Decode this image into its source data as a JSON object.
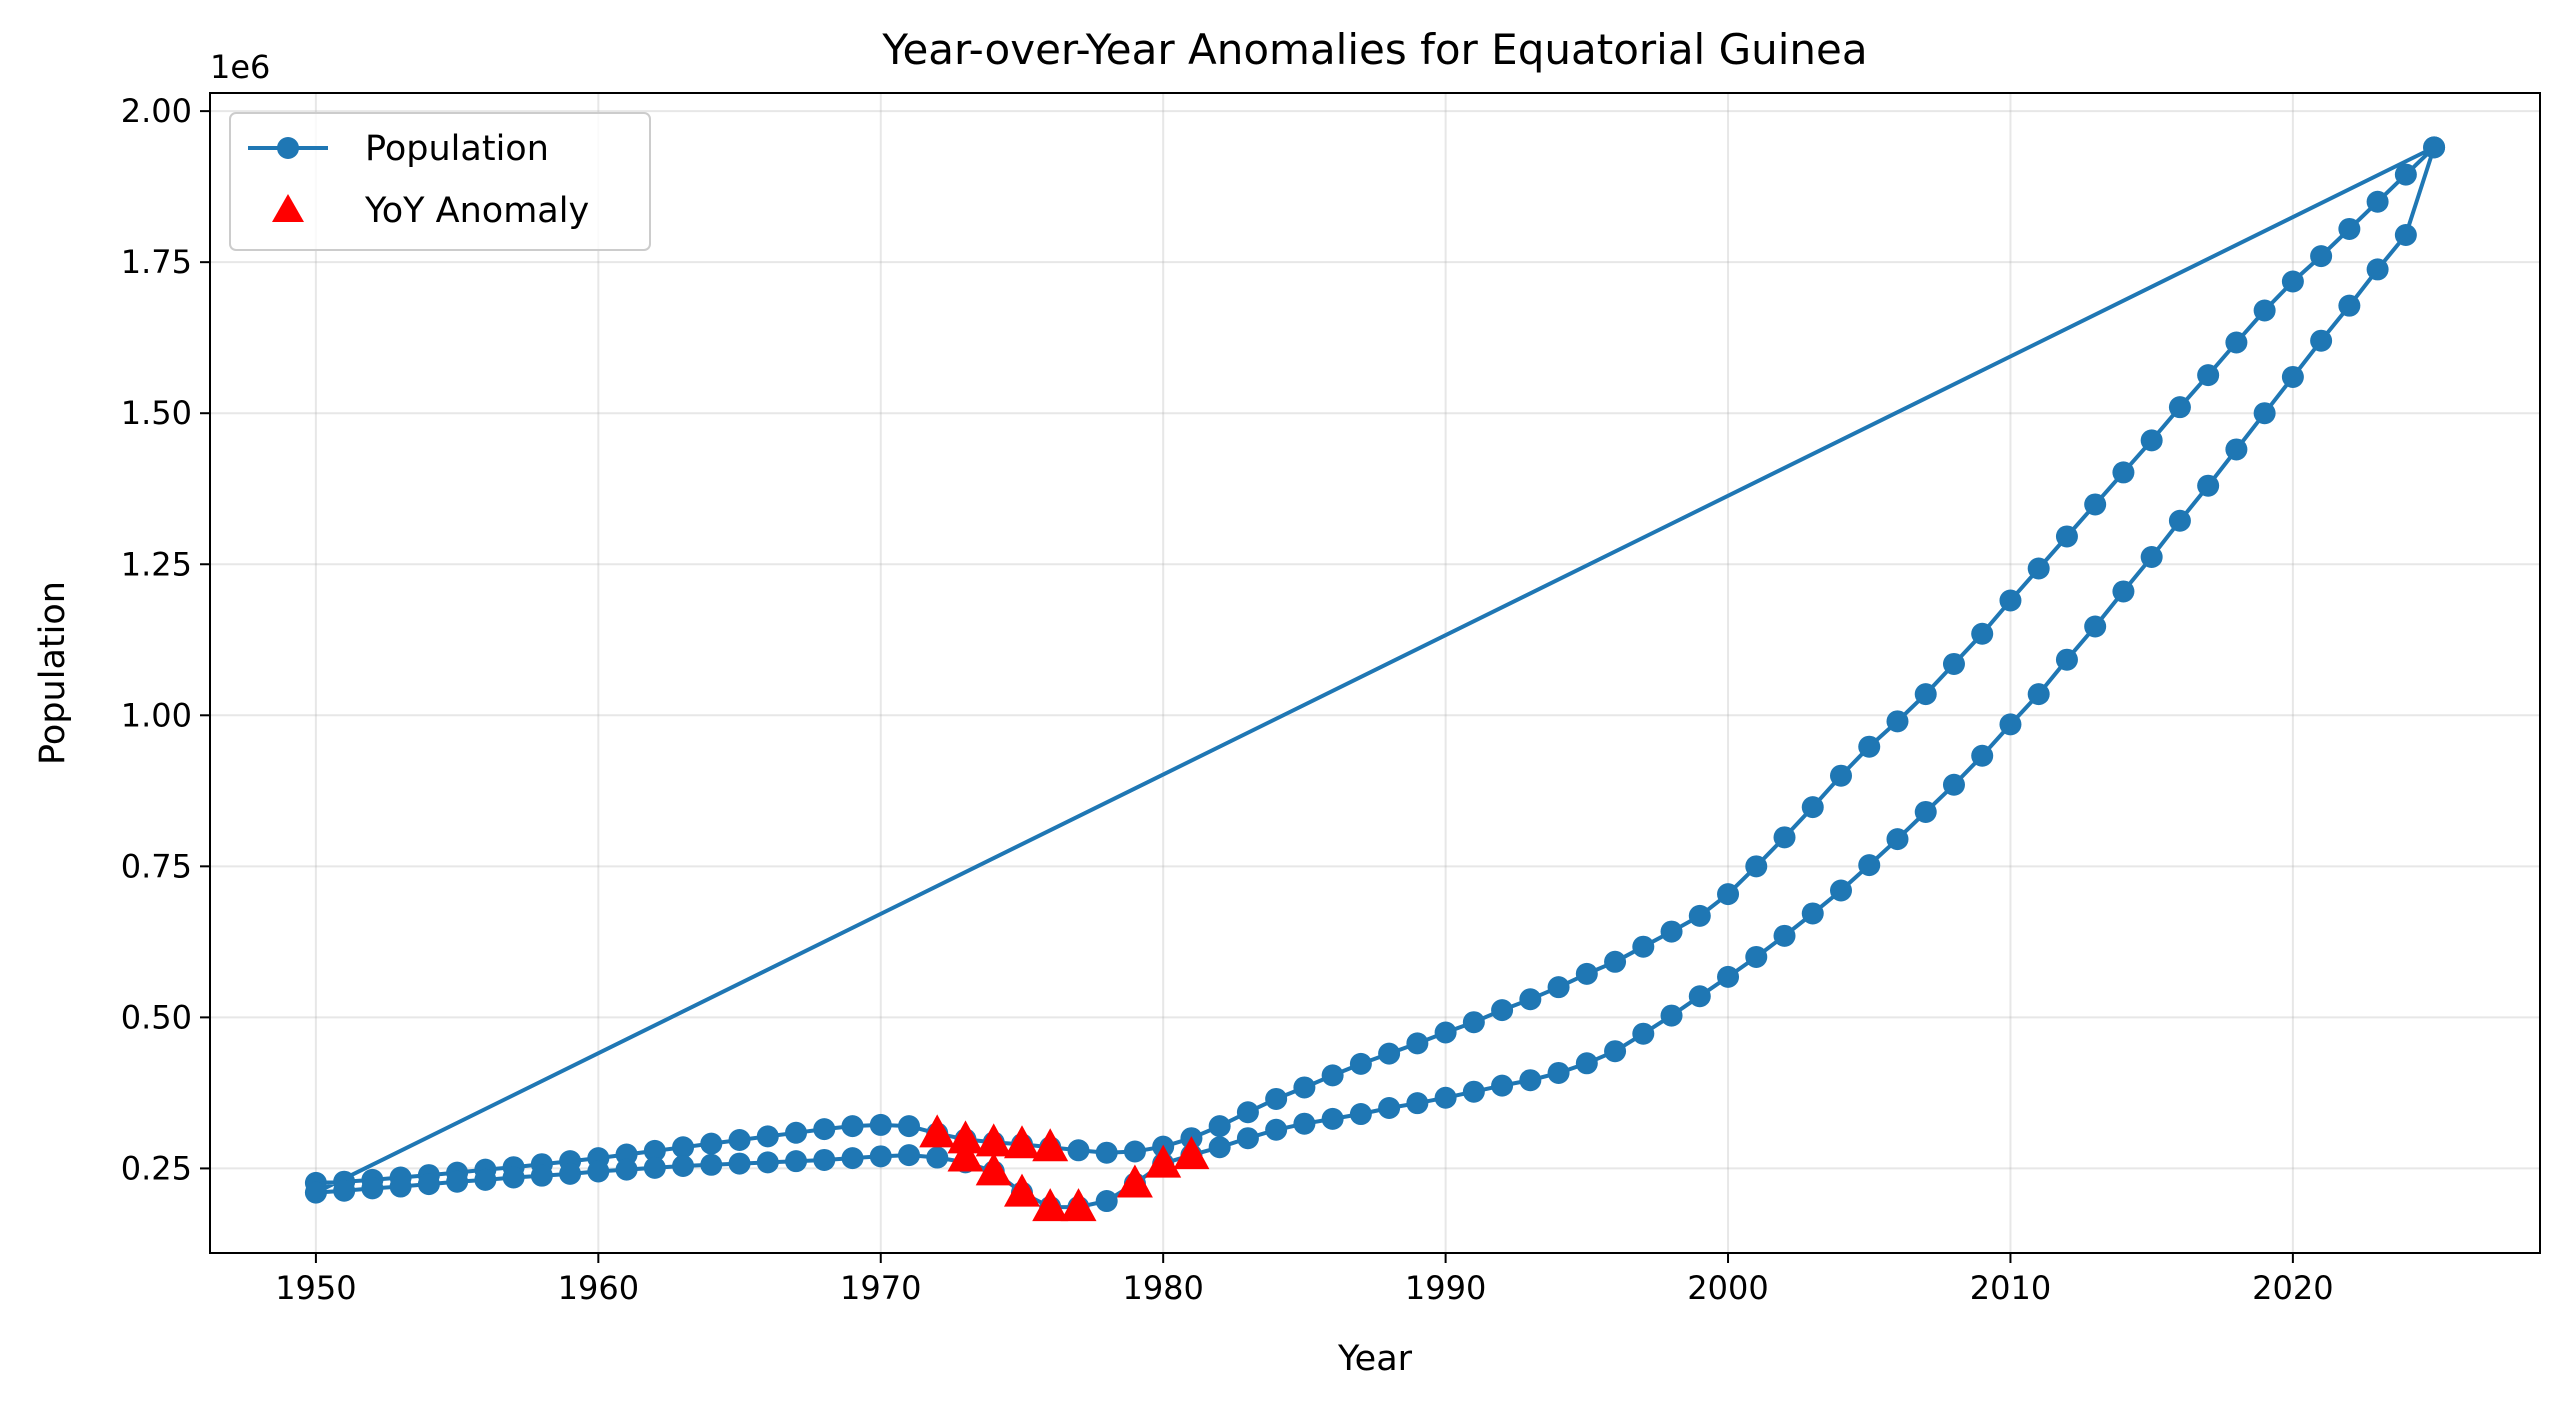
{
  "chart_data": {
    "type": "line",
    "title": "Year-over-Year Anomalies for Equatorial Guinea",
    "xlabel": "Year",
    "ylabel": "Population",
    "y_multiplier_label": "1e6",
    "xlim": [
      1946.25,
      2028.75
    ],
    "ylim": [
      110000,
      2030000
    ],
    "x_ticks": [
      1950,
      1960,
      1970,
      1980,
      1990,
      2000,
      2010,
      2020
    ],
    "x_tick_labels": [
      "1950",
      "1960",
      "1970",
      "1980",
      "1990",
      "2000",
      "2010",
      "2020"
    ],
    "y_ticks": [
      250000,
      500000,
      750000,
      1000000,
      1250000,
      1500000,
      1750000,
      2000000
    ],
    "y_tick_labels": [
      "0.25",
      "0.50",
      "0.75",
      "1.00",
      "1.25",
      "1.50",
      "1.75",
      "2.00"
    ],
    "grid": true,
    "legend_position": "upper-left",
    "colors": {
      "population": "#1f77b4",
      "anomaly": "#ff0000"
    },
    "series": [
      {
        "name": "Population",
        "style": "line-with-circle-markers",
        "segments": [
          {
            "x": [
              1950,
              1951,
              1952,
              1953,
              1954,
              1955,
              1956,
              1957,
              1958,
              1959,
              1960,
              1961,
              1962,
              1963,
              1964,
              1965,
              1966,
              1967,
              1968,
              1969,
              1970,
              1971,
              1972,
              1973,
              1974,
              1975,
              1976,
              1977,
              1978,
              1979,
              1980,
              1981,
              1982,
              1983,
              1984,
              1985,
              1986,
              1987,
              1988,
              1989,
              1990,
              1991,
              1992,
              1993,
              1994,
              1995,
              1996,
              1997,
              1998,
              1999,
              2000,
              2001,
              2002,
              2003,
              2004,
              2005,
              2006,
              2007,
              2008,
              2009,
              2010,
              2011,
              2012,
              2013,
              2014,
              2015,
              2016,
              2017,
              2018,
              2019,
              2020,
              2021,
              2022,
              2023,
              2024,
              2025
            ],
            "y": [
              226000,
              228000,
              231000,
              235000,
              239000,
              243000,
              248000,
              252000,
              257000,
              262000,
              267000,
              273000,
              279000,
              285000,
              291000,
              297000,
              303000,
              309000,
              315000,
              320000,
              322000,
              320000,
              308000,
              298000,
              293000,
              290000,
              285000,
              280000,
              276000,
              278000,
              286000,
              300000,
              320000,
              343000,
              365000,
              384000,
              404000,
              423000,
              440000,
              457000,
              475000,
              492000,
              512000,
              530000,
              550000,
              572000,
              592000,
              617000,
              642000,
              668000,
              704000,
              750000,
              798000,
              848000,
              900000,
              948000,
              990000,
              1035000,
              1085000,
              1135000,
              1190000,
              1243000,
              1296000,
              1349000,
              1402000,
              1455000,
              1510000,
              1563000,
              1617000,
              1670000,
              1718000,
              1760000,
              1805000,
              1850000,
              1895000,
              1940000
            ]
          },
          {
            "x": [
              1950,
              1951,
              1952,
              1953,
              1954,
              1955,
              1956,
              1957,
              1958,
              1959,
              1960,
              1961,
              1962,
              1963,
              1964,
              1965,
              1966,
              1967,
              1968,
              1969,
              1970,
              1971,
              1972,
              1973,
              1974,
              1975,
              1976,
              1977,
              1978,
              1979,
              1980,
              1981,
              1982,
              1983,
              1984,
              1985,
              1986,
              1987,
              1988,
              1989,
              1990,
              1991,
              1992,
              1993,
              1994,
              1995,
              1996,
              1997,
              1998,
              1999,
              2000,
              2001,
              2002,
              2003,
              2004,
              2005,
              2006,
              2007,
              2008,
              2009,
              2010,
              2011,
              2012,
              2013,
              2014,
              2015,
              2016,
              2017,
              2018,
              2019,
              2020,
              2021,
              2022,
              2023,
              2024,
              2025
            ],
            "y": [
              210000,
              213000,
              217000,
              220000,
              224000,
              228000,
              231000,
              235000,
              238000,
              241000,
              245000,
              248000,
              251000,
              254000,
              256000,
              258000,
              260000,
              262000,
              264000,
              267000,
              270000,
              272000,
              268000,
              260000,
              245000,
              210000,
              186000,
              186000,
              196000,
              225000,
              258000,
              272000,
              285000,
              300000,
              314000,
              324000,
              332000,
              340000,
              350000,
              358000,
              367000,
              377000,
              387000,
              396000,
              408000,
              424000,
              444000,
              473000,
              503000,
              535000,
              567000,
              600000,
              635000,
              672000,
              710000,
              752000,
              795000,
              840000,
              885000,
              933000,
              985000,
              1035000,
              1092000,
              1147000,
              1205000,
              1262000,
              1322000,
              1380000,
              1440000,
              1500000,
              1560000,
              1620000,
              1678000,
              1738000,
              1795000,
              1940000
            ]
          }
        ]
      },
      {
        "name": "YoY Anomaly",
        "style": "red-triangle-markers",
        "x": [
          1972,
          1973,
          1973,
          1974,
          1974,
          1975,
          1975,
          1976,
          1976,
          1977,
          1979,
          1980,
          1981
        ],
        "y": [
          308000,
          298000,
          268000,
          293000,
          245000,
          290000,
          210000,
          285000,
          186000,
          186000,
          225000,
          258000,
          272000
        ]
      }
    ]
  }
}
